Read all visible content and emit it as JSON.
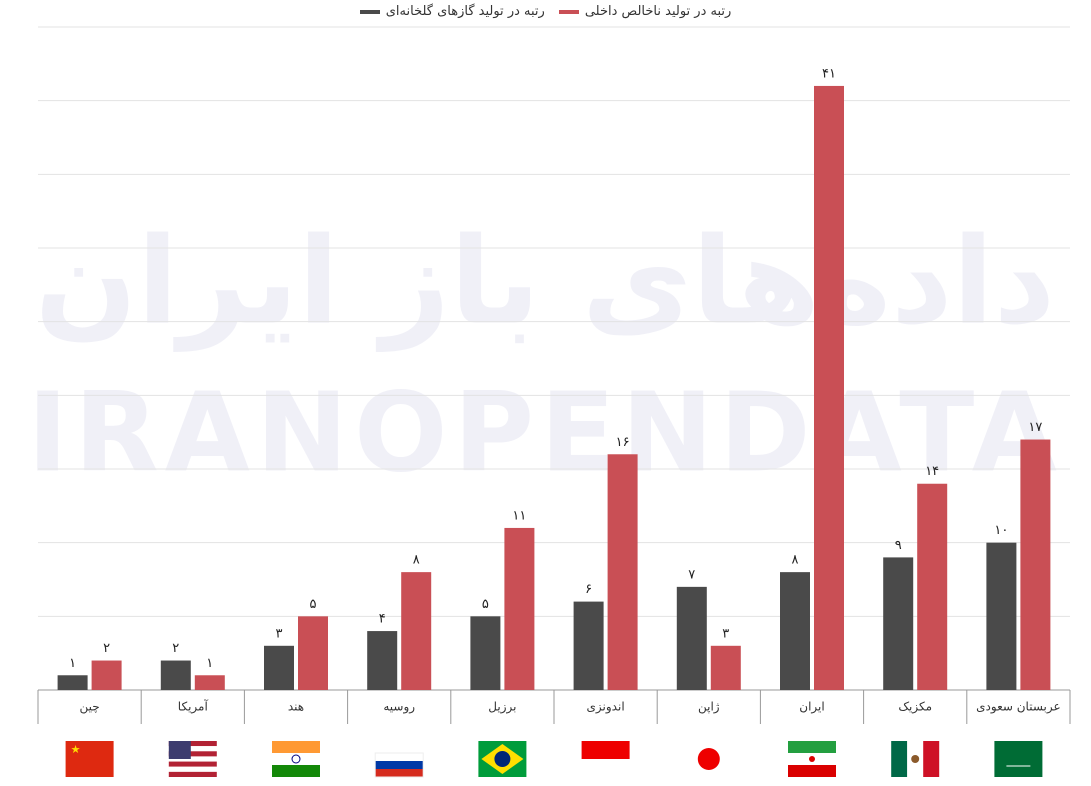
{
  "chart_data": {
    "type": "bar",
    "watermark": [
      "داده‌های باز ایران",
      "IRANOPENDATA"
    ],
    "categories": [
      "چین",
      "آمریکا",
      "هند",
      "روسیه",
      "برزیل",
      "اندونزی",
      "ژاپن",
      "ایران",
      "مکزیک",
      "عربستان سعودی"
    ],
    "series": [
      {
        "name": "رتبه در تولید گازهای گلخانه‌ای",
        "color": "#4a4a4a",
        "values": [
          1,
          2,
          3,
          4,
          5,
          6,
          7,
          8,
          9,
          10
        ],
        "value_labels": [
          "۱",
          "۲",
          "۳",
          "۴",
          "۵",
          "۶",
          "۷",
          "۸",
          "۹",
          "۱۰"
        ]
      },
      {
        "name": "رتبه در تولید ناخالص داخلی",
        "color": "#c94f55",
        "values": [
          2,
          1,
          5,
          8,
          11,
          16,
          3,
          41,
          14,
          17
        ],
        "value_labels": [
          "۲",
          "۱",
          "۵",
          "۸",
          "۱۱",
          "۱۶",
          "۳",
          "۴۱",
          "۱۴",
          "۱۷"
        ]
      }
    ],
    "ylim": [
      0,
      45
    ],
    "yticks": [
      0,
      5,
      10,
      15,
      20,
      25,
      30,
      35,
      40,
      45
    ],
    "grid": true
  }
}
